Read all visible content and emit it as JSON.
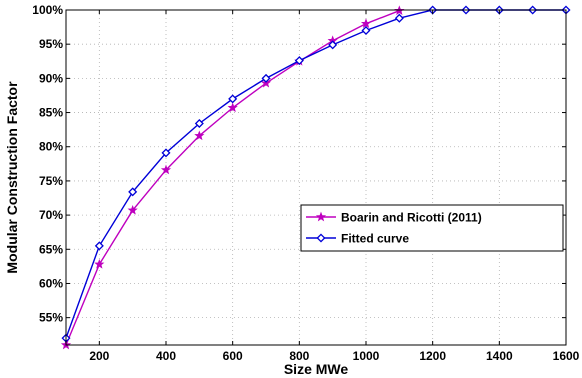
{
  "chart_data": {
    "type": "line",
    "title": "",
    "xlabel": "Size MWe",
    "ylabel": "Modular Construction Factor",
    "xlim": [
      100,
      1600
    ],
    "ylim": [
      51,
      100
    ],
    "x_ticks": [
      200,
      400,
      600,
      800,
      1000,
      1200,
      1400,
      1600
    ],
    "y_ticks": [
      55,
      60,
      65,
      70,
      75,
      80,
      85,
      90,
      95,
      100
    ],
    "y_tick_suffix": "%",
    "grid": true,
    "legend_position": "center-right",
    "series": [
      {
        "name": "Boarin and Ricotti (2011)",
        "color": "#bf00bf",
        "marker": "star",
        "x": [
          100,
          200,
          300,
          400,
          500,
          600,
          700,
          800,
          900,
          1000,
          1100
        ],
        "y": [
          51.0,
          62.8,
          70.7,
          76.6,
          81.6,
          85.7,
          89.3,
          92.5,
          95.5,
          98.0,
          99.9
        ]
      },
      {
        "name": "Fitted curve",
        "color": "#0000d8",
        "marker": "diamond",
        "x": [
          100,
          200,
          300,
          400,
          500,
          600,
          700,
          800,
          900,
          1000,
          1100,
          1200,
          1300,
          1400,
          1500,
          1600
        ],
        "y": [
          52.0,
          65.5,
          73.4,
          79.1,
          83.4,
          87.0,
          90.0,
          92.6,
          94.9,
          97.0,
          98.8,
          100,
          100,
          100,
          100,
          100
        ]
      }
    ]
  }
}
